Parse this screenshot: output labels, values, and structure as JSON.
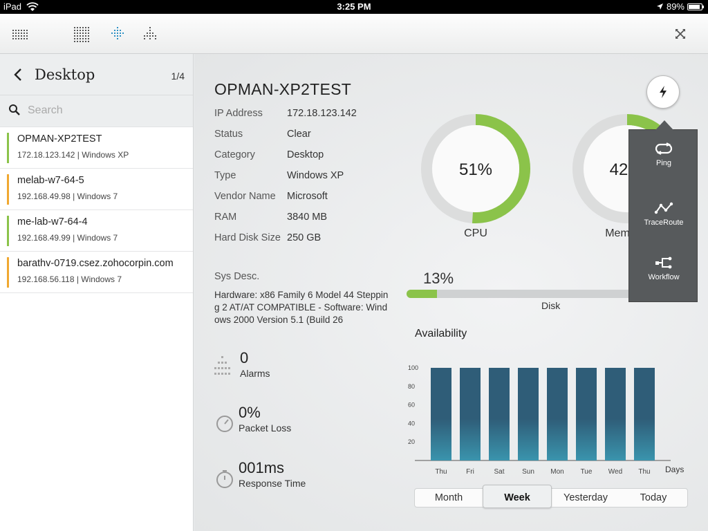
{
  "status_bar": {
    "device": "iPad",
    "time": "3:25 PM",
    "battery": "89%",
    "battery_level": 0.89
  },
  "sidebar": {
    "title": "Desktop",
    "page": "1/4",
    "search_placeholder": "Search",
    "items": [
      {
        "name": "OPMAN-XP2TEST",
        "sub": "172.18.123.142 | Windows XP",
        "color": "#8bc34a"
      },
      {
        "name": "melab-w7-64-5",
        "sub": "192.168.49.98 | Windows 7",
        "color": "#f0a830"
      },
      {
        "name": "me-lab-w7-64-4",
        "sub": "192.168.49.99 | Windows 7",
        "color": "#8bc34a"
      },
      {
        "name": "barathv-0719.csez.zohocorpin.com",
        "sub": "192.168.56.118 | Windows 7",
        "color": "#f0a830"
      }
    ]
  },
  "device": {
    "title": "OPMAN-XP2TEST",
    "props": [
      {
        "k": "IP Address",
        "v": "172.18.123.142"
      },
      {
        "k": "Status",
        "v": "Clear"
      },
      {
        "k": "Category",
        "v": "Desktop"
      },
      {
        "k": "Type",
        "v": "Windows XP"
      },
      {
        "k": "Vendor Name",
        "v": "Microsoft"
      },
      {
        "k": "RAM",
        "v": "3840 MB"
      },
      {
        "k": "Hard Disk Size",
        "v": "250 GB"
      }
    ],
    "sys_desc_label": "Sys Desc.",
    "sys_desc": "Hardware: x86 Family 6 Model 44 Stepping 2 AT/AT COMPATIBLE - Software: Windows 2000 Version 5.1 (Build 26"
  },
  "metrics": {
    "alarms_value": "0",
    "alarms_label": "Alarms",
    "packet_value": "0%",
    "packet_label": "Packet Loss",
    "response_value": "001ms",
    "response_label": "Response Time"
  },
  "gauges": {
    "cpu": {
      "text": "51%",
      "label": "CPU",
      "value": 51
    },
    "memory": {
      "text": "42",
      "label": "Mem",
      "value": 42
    }
  },
  "disk": {
    "text": "13%",
    "label": "Disk",
    "value": 13
  },
  "colors": {
    "green": "#8bc34a",
    "orange": "#f0a830",
    "bar_top": "#2f5d78",
    "bar_bottom": "#3a94ad"
  },
  "availability": {
    "title": "Availability",
    "days_label": "Days",
    "segments": [
      "Month",
      "Week",
      "Yesterday",
      "Today"
    ],
    "active_segment": "Week"
  },
  "chart_data": {
    "type": "bar",
    "title": "Availability",
    "xlabel": "Days",
    "ylabel": "",
    "categories": [
      "Thu",
      "Fri",
      "Sat",
      "Sun",
      "Mon",
      "Tue",
      "Wed",
      "Thu"
    ],
    "values": [
      100,
      100,
      100,
      100,
      100,
      100,
      100,
      100
    ],
    "yticks": [
      20,
      40,
      60,
      80,
      100
    ],
    "ylim": [
      0,
      100
    ],
    "grid": false
  },
  "popover": {
    "items": [
      {
        "label": "Ping",
        "icon": "ping-icon"
      },
      {
        "label": "TraceRoute",
        "icon": "traceroute-icon"
      },
      {
        "label": "Workflow",
        "icon": "workflow-icon"
      }
    ]
  }
}
